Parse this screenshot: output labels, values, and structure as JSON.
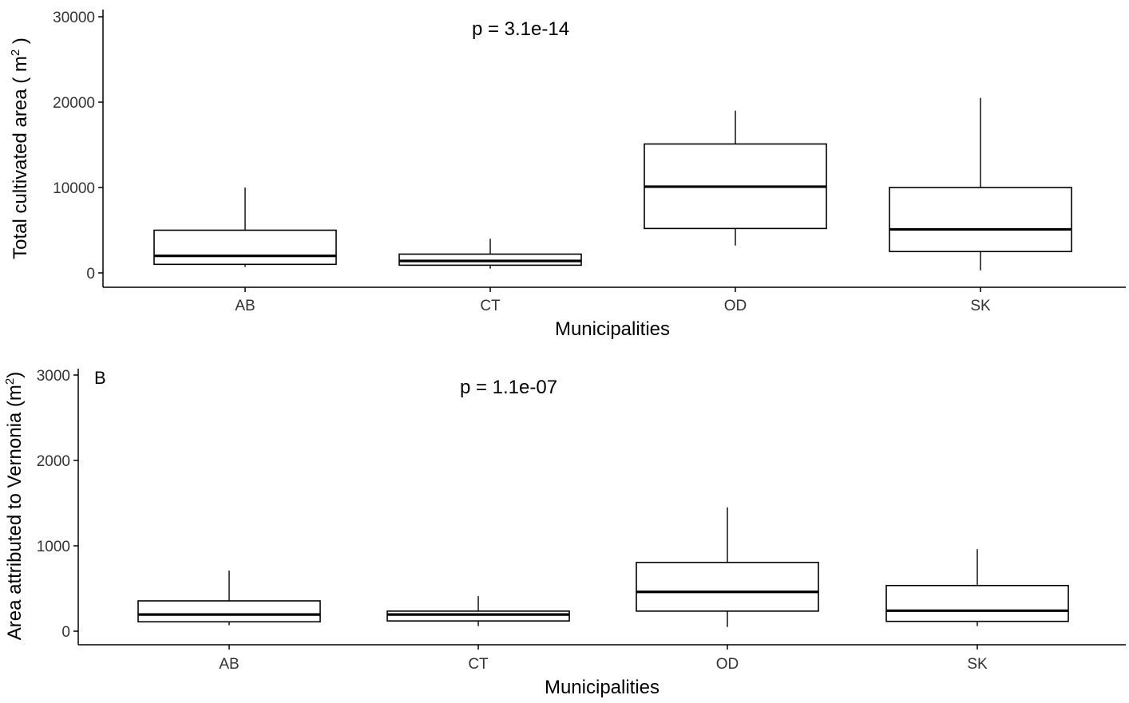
{
  "chart_data": [
    {
      "type": "box",
      "panel_label": "",
      "annotation": "p = 3.1e-14",
      "xlabel": "Municipalities",
      "ylabel": "Total cultivated area ( m",
      "ylabel_sup": "2",
      "ylabel_tail": " )",
      "categories": [
        "AB",
        "CT",
        "OD",
        "SK"
      ],
      "ylim": [
        0,
        30000
      ],
      "yticks": [
        0,
        10000,
        20000,
        30000
      ],
      "ytick_labels": [
        "0",
        "10000",
        "20000",
        "30000"
      ],
      "boxes": [
        {
          "name": "AB",
          "min": 700,
          "q1": 1000,
          "median": 2000,
          "q3": 5000,
          "max": 10000
        },
        {
          "name": "CT",
          "min": 500,
          "q1": 900,
          "median": 1400,
          "q3": 2200,
          "max": 4000
        },
        {
          "name": "OD",
          "min": 3200,
          "q1": 5200,
          "median": 10100,
          "q3": 15100,
          "max": 19000
        },
        {
          "name": "SK",
          "min": 300,
          "q1": 2500,
          "median": 5100,
          "q3": 10000,
          "max": 20500
        }
      ]
    },
    {
      "type": "box",
      "panel_label": "B",
      "annotation": "p = 1.1e-07",
      "xlabel": "Municipalities",
      "ylabel": "Area attributed to Vernonia (m",
      "ylabel_sup": "2",
      "ylabel_tail": ")",
      "categories": [
        "AB",
        "CT",
        "OD",
        "SK"
      ],
      "ylim": [
        0,
        3000
      ],
      "yticks": [
        0,
        1000,
        2000,
        3000
      ],
      "ytick_labels": [
        "0",
        "1000",
        "2000",
        "3000"
      ],
      "boxes": [
        {
          "name": "AB",
          "min": 70,
          "q1": 110,
          "median": 195,
          "q3": 355,
          "max": 710
        },
        {
          "name": "CT",
          "min": 60,
          "q1": 120,
          "median": 195,
          "q3": 235,
          "max": 410
        },
        {
          "name": "OD",
          "min": 50,
          "q1": 235,
          "median": 460,
          "q3": 805,
          "max": 1450
        },
        {
          "name": "SK",
          "min": 60,
          "q1": 115,
          "median": 240,
          "q3": 535,
          "max": 960
        }
      ]
    }
  ]
}
